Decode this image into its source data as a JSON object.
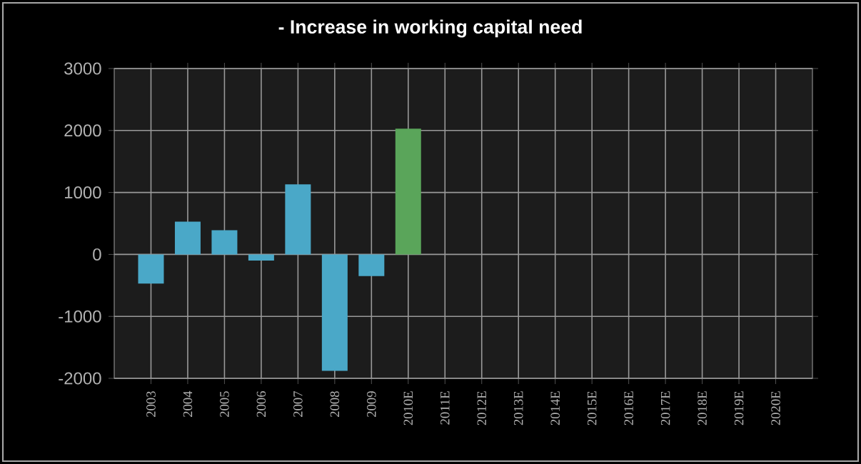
{
  "chart_data": {
    "type": "bar",
    "title": "- Increase in working capital need",
    "categories": [
      "2003",
      "2004",
      "2005",
      "2006",
      "2007",
      "2008",
      "2009",
      "2010E",
      "2011E",
      "2012E",
      "2013E",
      "2014E",
      "2015E",
      "2016E",
      "2017E",
      "2018E",
      "2019E",
      "2020E"
    ],
    "values": [
      -470,
      530,
      390,
      -100,
      1130,
      -1880,
      -350,
      2030,
      null,
      null,
      null,
      null,
      null,
      null,
      null,
      null,
      null,
      null
    ],
    "colors": [
      "#4aa8c8",
      "#4aa8c8",
      "#4aa8c8",
      "#4aa8c8",
      "#4aa8c8",
      "#4aa8c8",
      "#4aa8c8",
      "#5aa55a",
      null,
      null,
      null,
      null,
      null,
      null,
      null,
      null,
      null,
      null
    ],
    "ylim": [
      -2000,
      3000
    ],
    "yticks": [
      -2000,
      -1000,
      0,
      1000,
      2000,
      3000
    ],
    "grid": true
  }
}
